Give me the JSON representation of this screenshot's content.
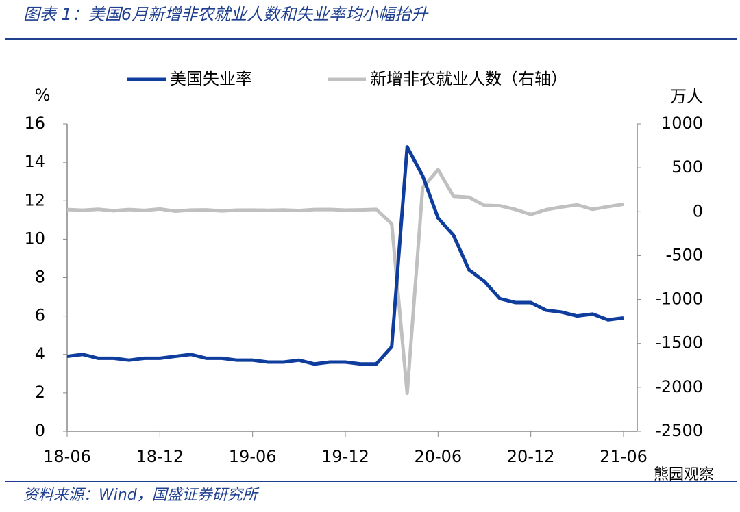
{
  "chart_data": {
    "type": "line",
    "title": "图表 1：美国6月新增非农就业人数和失业率均小幅抬升",
    "source": "资料来源：Wind，国盛证券研究所",
    "watermark": "熊园观察",
    "y_unit": "%",
    "y2_unit": "万人",
    "categories": [
      "18-06",
      null,
      null,
      null,
      null,
      null,
      "18-12",
      null,
      null,
      null,
      null,
      null,
      "19-06",
      null,
      null,
      null,
      null,
      null,
      "19-12",
      null,
      null,
      null,
      null,
      null,
      "20-06",
      null,
      null,
      null,
      null,
      null,
      "20-12",
      null,
      null,
      null,
      null,
      null,
      "21-06"
    ],
    "series": [
      {
        "name": "美国失业率",
        "color": "#0f3d9e",
        "values": [
          3.9,
          4.0,
          3.8,
          3.8,
          3.7,
          3.8,
          3.8,
          3.9,
          4.0,
          3.8,
          3.8,
          3.7,
          3.7,
          3.6,
          3.6,
          3.7,
          3.5,
          3.6,
          3.6,
          3.5,
          3.5,
          4.4,
          14.8,
          13.3,
          11.1,
          10.2,
          8.4,
          7.8,
          6.9,
          6.7,
          6.7,
          6.3,
          6.2,
          6.0,
          6.1,
          5.8,
          5.9
        ]
      },
      {
        "name": "新增非农就业人数（右轴）",
        "color": "#c0c0c0",
        "axis": "y2",
        "values": [
          25,
          17,
          28,
          11,
          25,
          15,
          31,
          6,
          19,
          21,
          9,
          18,
          19,
          16,
          20,
          13,
          25,
          26,
          18,
          21,
          27,
          -137,
          -2068,
          272,
          478,
          176,
          165,
          72,
          68,
          26,
          -31,
          23,
          54,
          78,
          27,
          58,
          85
        ]
      }
    ],
    "ylim": [
      0,
      16
    ],
    "yticks": [
      0,
      2,
      4,
      6,
      8,
      10,
      12,
      14,
      16
    ],
    "y2lim": [
      -2500,
      1000
    ],
    "y2ticks": [
      -2500,
      -2000,
      -1500,
      -1000,
      -500,
      0,
      500,
      1000
    ],
    "legend": "top"
  }
}
